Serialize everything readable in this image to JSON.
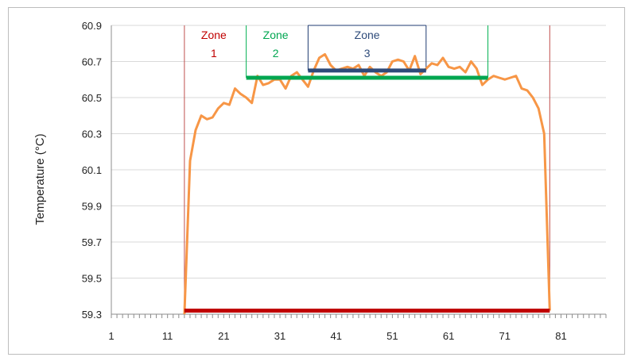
{
  "chart_data": {
    "type": "line",
    "title": "",
    "xlabel": "",
    "ylabel": "Temperature (°C)",
    "xlim": [
      1,
      89
    ],
    "ylim": [
      59.3,
      60.9
    ],
    "x_ticks": [
      1,
      11,
      21,
      31,
      41,
      51,
      61,
      71,
      81
    ],
    "y_ticks": [
      59.3,
      59.5,
      59.7,
      59.9,
      60.1,
      60.3,
      60.5,
      60.7,
      60.9
    ],
    "y_tick_labels": [
      "59.3",
      "59.5",
      "59.7",
      "59.9",
      "60.1",
      "60.3",
      "60.5",
      "60.7",
      "60.9"
    ],
    "grid": "horizontal",
    "legend": "none",
    "series": [
      {
        "color": "#f79646",
        "x": [
          14,
          15,
          16,
          17,
          18,
          19,
          20,
          21,
          22,
          23,
          24,
          25,
          26,
          27,
          28,
          29,
          30,
          31,
          32,
          33,
          34,
          35,
          36,
          37,
          38,
          39,
          40,
          41,
          42,
          43,
          44,
          45,
          46,
          47,
          48,
          49,
          50,
          51,
          52,
          53,
          54,
          55,
          56,
          57,
          58,
          59,
          60,
          61,
          62,
          63,
          64,
          65,
          66,
          67,
          68,
          69,
          70,
          71,
          72,
          73,
          74,
          75,
          76,
          77,
          78,
          79
        ],
        "y": [
          59.3,
          60.15,
          60.32,
          60.4,
          60.38,
          60.39,
          60.44,
          60.47,
          60.46,
          60.55,
          60.52,
          60.5,
          60.47,
          60.62,
          60.57,
          60.58,
          60.6,
          60.6,
          60.55,
          60.62,
          60.64,
          60.6,
          60.56,
          60.65,
          60.72,
          60.74,
          60.68,
          60.65,
          60.66,
          60.67,
          60.66,
          60.68,
          60.62,
          60.67,
          60.64,
          60.62,
          60.64,
          60.7,
          60.71,
          60.7,
          60.65,
          60.73,
          60.63,
          60.66,
          60.69,
          60.68,
          60.72,
          60.67,
          60.66,
          60.67,
          60.64,
          60.7,
          60.66,
          60.57,
          60.6,
          60.62,
          60.61,
          60.6,
          60.61,
          60.62,
          60.55,
          60.54,
          60.5,
          60.44,
          60.3,
          59.32
        ]
      }
    ],
    "zones": [
      {
        "label_line1": "Zone",
        "label_line2": "1",
        "x_start": 14,
        "x_end": 79,
        "level": 59.32,
        "color": "#c00000",
        "bracket_color": "#c0504d"
      },
      {
        "label_line1": "Zone",
        "label_line2": "2",
        "x_start": 25,
        "x_end": 68,
        "level": 60.61,
        "color": "#00a650",
        "bracket_color": "#00b050"
      },
      {
        "label_line1": "Zone",
        "label_line2": "3",
        "x_start": 36,
        "x_end": 57,
        "level": 60.65,
        "color": "#2e4b7a",
        "bracket_color": "#1f3b70"
      }
    ]
  }
}
